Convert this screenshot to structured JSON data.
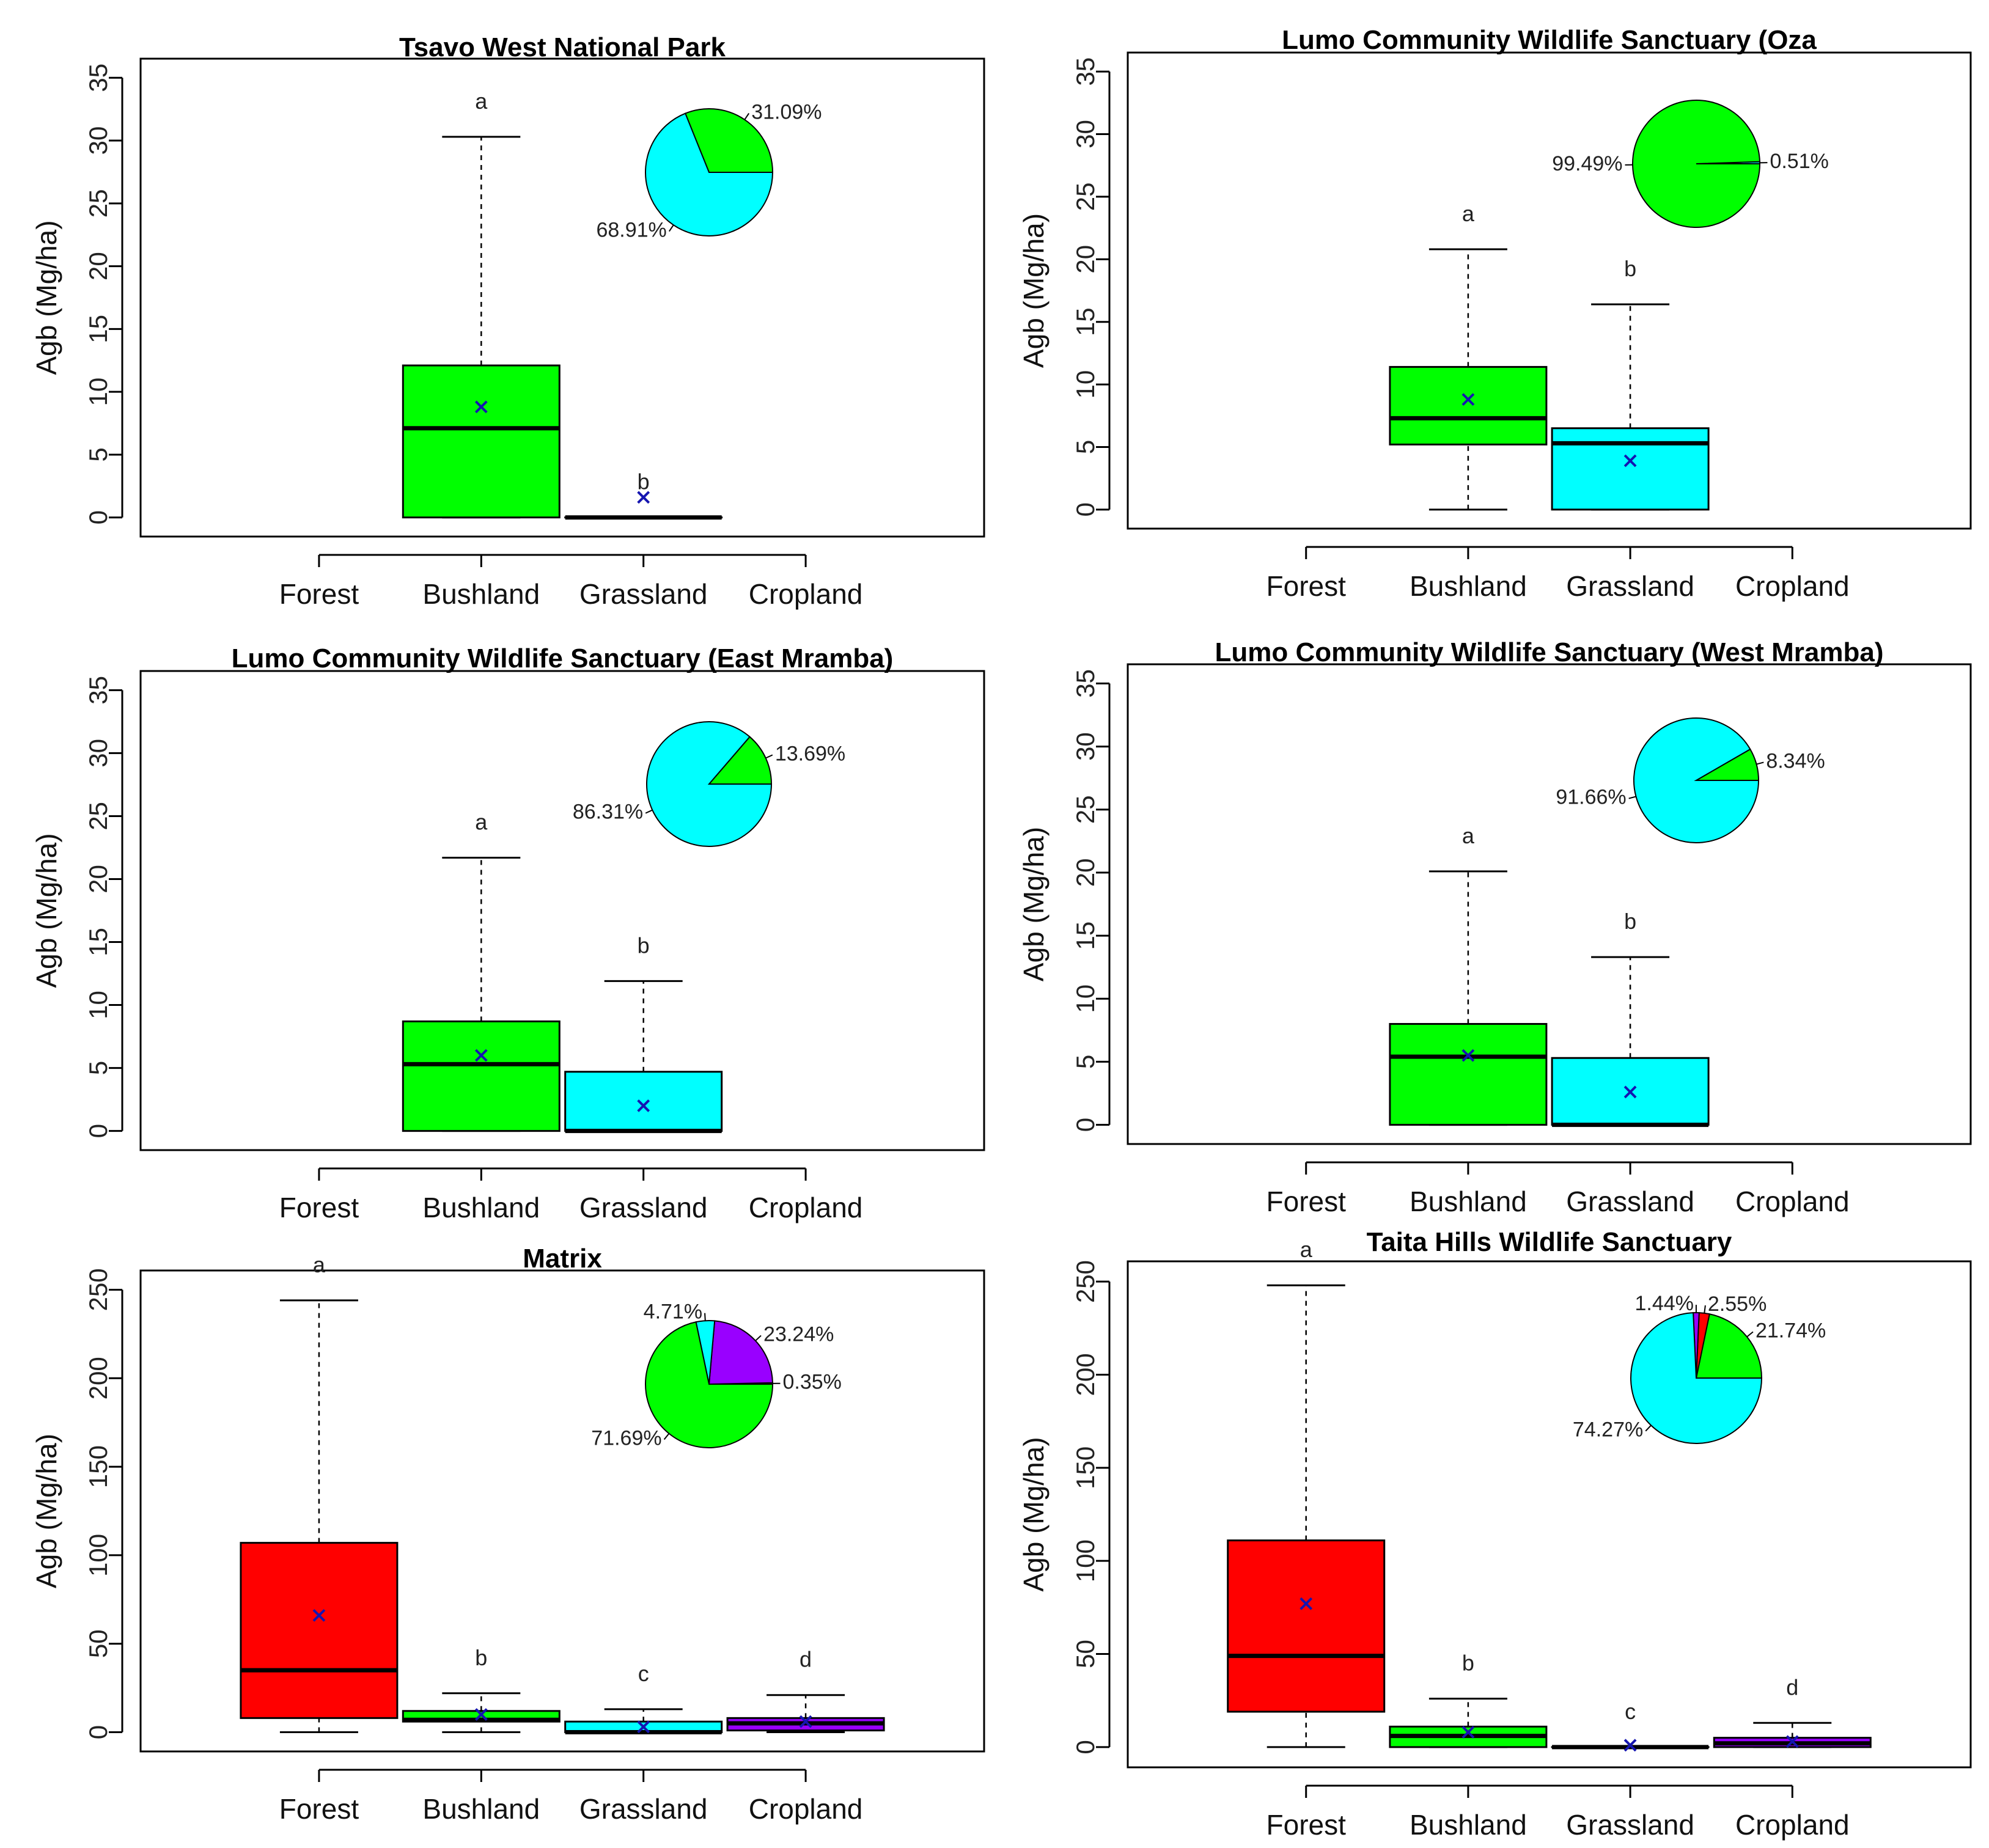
{
  "chart_data": [
    {
      "type": "box",
      "title": "Tsavo West National Park",
      "ylabel": "Agb (Mg/ha)",
      "ylim": [
        0,
        35
      ],
      "yticks": [
        "0",
        "5",
        "10",
        "15",
        "20",
        "25",
        "30",
        "35"
      ],
      "categories": [
        "Forest",
        "Bushland",
        "Grassland",
        "Cropland"
      ],
      "boxes": [
        null,
        {
          "category": "Bushland",
          "min": 0,
          "q1": 0,
          "median": 7.1,
          "q3": 12.1,
          "max": 30.3,
          "mean": 8.8,
          "letter": "a",
          "color": "#00ff00"
        },
        {
          "category": "Grassland",
          "min": 0,
          "q1": 0,
          "median": 0,
          "q3": 0,
          "max": 0,
          "mean": 1.6,
          "letter": "b",
          "color": "#00ffff"
        },
        null
      ],
      "pie": {
        "slices": [
          {
            "value": 31.09,
            "label": "31.09%",
            "color": "#00ff00"
          },
          {
            "value": 68.91,
            "label": "68.91%",
            "color": "#00ffff"
          }
        ]
      }
    },
    {
      "type": "box",
      "title": "Lumo Community Wildlife Sanctuary (Oza",
      "ylabel": "Agb (Mg/ha)",
      "ylim": [
        0,
        35
      ],
      "yticks": [
        "0",
        "5",
        "10",
        "15",
        "20",
        "25",
        "30",
        "35"
      ],
      "categories": [
        "Forest",
        "Bushland",
        "Grassland",
        "Cropland"
      ],
      "boxes": [
        null,
        {
          "category": "Bushland",
          "min": 0,
          "q1": 5.2,
          "median": 7.3,
          "q3": 11.4,
          "max": 20.8,
          "mean": 8.8,
          "letter": "a",
          "color": "#00ff00"
        },
        {
          "category": "Grassland",
          "min": 0,
          "q1": 0,
          "median": 5.3,
          "q3": 6.5,
          "max": 16.4,
          "mean": 3.9,
          "letter": "b",
          "color": "#00ffff"
        },
        null
      ],
      "pie": {
        "slices": [
          {
            "value": 0.51,
            "label": "0.51%",
            "color": "#00ffff"
          },
          {
            "value": 99.49,
            "label": "99.49%",
            "color": "#00ff00"
          }
        ]
      }
    },
    {
      "type": "box",
      "title": "Lumo Community Wildlife Sanctuary (East Mramba)",
      "ylabel": "Agb (Mg/ha)",
      "ylim": [
        0,
        35
      ],
      "yticks": [
        "0",
        "5",
        "10",
        "15",
        "20",
        "25",
        "30",
        "35"
      ],
      "categories": [
        "Forest",
        "Bushland",
        "Grassland",
        "Cropland"
      ],
      "boxes": [
        null,
        {
          "category": "Bushland",
          "min": 0,
          "q1": 0,
          "median": 5.3,
          "q3": 8.7,
          "max": 21.7,
          "mean": 6.0,
          "letter": "a",
          "color": "#00ff00"
        },
        {
          "category": "Grassland",
          "min": 0,
          "q1": 0,
          "median": 0,
          "q3": 4.7,
          "max": 11.9,
          "mean": 2.0,
          "letter": "b",
          "color": "#00ffff"
        },
        null
      ],
      "pie": {
        "slices": [
          {
            "value": 13.69,
            "label": "13.69%",
            "color": "#00ff00"
          },
          {
            "value": 86.31,
            "label": "86.31%",
            "color": "#00ffff"
          }
        ]
      }
    },
    {
      "type": "box",
      "title": "Lumo Community Wildlife Sanctuary (West Mramba)",
      "ylabel": "Agb (Mg/ha)",
      "ylim": [
        0,
        35
      ],
      "yticks": [
        "0",
        "5",
        "10",
        "15",
        "20",
        "25",
        "30",
        "35"
      ],
      "categories": [
        "Forest",
        "Bushland",
        "Grassland",
        "Cropland"
      ],
      "boxes": [
        null,
        {
          "category": "Bushland",
          "min": 0,
          "q1": 0,
          "median": 5.4,
          "q3": 8.0,
          "max": 20.1,
          "mean": 5.5,
          "letter": "a",
          "color": "#00ff00"
        },
        {
          "category": "Grassland",
          "min": 0,
          "q1": 0,
          "median": 0,
          "q3": 5.3,
          "max": 13.3,
          "mean": 2.6,
          "letter": "b",
          "color": "#00ffff"
        },
        null
      ],
      "pie": {
        "slices": [
          {
            "value": 8.34,
            "label": "8.34%",
            "color": "#00ff00"
          },
          {
            "value": 91.66,
            "label": "91.66%",
            "color": "#00ffff"
          }
        ]
      }
    },
    {
      "type": "box",
      "title": "Matrix",
      "ylabel": "Agb (Mg/ha)",
      "ylim": [
        0,
        250
      ],
      "yticks": [
        "0",
        "50",
        "100",
        "150",
        "200",
        "250"
      ],
      "categories": [
        "Forest",
        "Bushland",
        "Grassland",
        "Cropland"
      ],
      "boxes": [
        {
          "category": "Forest",
          "min": 0,
          "q1": 8,
          "median": 35,
          "q3": 107,
          "max": 244,
          "mean": 66,
          "letter": "a",
          "color": "#ff0000"
        },
        {
          "category": "Bushland",
          "min": 0,
          "q1": 6,
          "median": 7,
          "q3": 12,
          "max": 22,
          "mean": 10,
          "letter": "b",
          "color": "#00ff00"
        },
        {
          "category": "Grassland",
          "min": 0,
          "q1": 0,
          "median": 0,
          "q3": 6,
          "max": 13,
          "mean": 3,
          "letter": "c",
          "color": "#00ffff"
        },
        {
          "category": "Cropland",
          "min": 0,
          "q1": 1,
          "median": 5,
          "q3": 8,
          "max": 21,
          "mean": 6,
          "letter": "d",
          "color": "#9900ff"
        }
      ],
      "pie": {
        "slices": [
          {
            "value": 0.35,
            "label": "0.35%",
            "color": "#ff0000"
          },
          {
            "value": 23.24,
            "label": "23.24%",
            "color": "#9900ff"
          },
          {
            "value": 4.71,
            "label": "4.71%",
            "color": "#00ffff"
          },
          {
            "value": 71.69,
            "label": "71.69%",
            "color": "#00ff00"
          }
        ]
      }
    },
    {
      "type": "box",
      "title": "Taita Hills Wildlife Sanctuary",
      "ylabel": "Agb (Mg/ha)",
      "ylim": [
        0,
        250
      ],
      "yticks": [
        "0",
        "50",
        "100",
        "150",
        "200",
        "250"
      ],
      "categories": [
        "Forest",
        "Bushland",
        "Grassland",
        "Cropland"
      ],
      "boxes": [
        {
          "category": "Forest",
          "min": 0,
          "q1": 19,
          "median": 49,
          "q3": 111,
          "max": 248,
          "mean": 77,
          "letter": "a",
          "color": "#ff0000"
        },
        {
          "category": "Bushland",
          "min": 0,
          "q1": 0,
          "median": 6,
          "q3": 11,
          "max": 26,
          "mean": 8,
          "letter": "b",
          "color": "#00ff00"
        },
        {
          "category": "Grassland",
          "min": 0,
          "q1": 0,
          "median": 0,
          "q3": 0,
          "max": 0,
          "mean": 1,
          "letter": "c",
          "color": "#00ffff"
        },
        {
          "category": "Cropland",
          "min": 0,
          "q1": 0,
          "median": 2,
          "q3": 5,
          "max": 13,
          "mean": 3,
          "letter": "d",
          "color": "#9900ff"
        }
      ],
      "pie": {
        "slices": [
          {
            "value": 21.74,
            "label": "21.74%",
            "color": "#00ff00"
          },
          {
            "value": 2.55,
            "label": "2.55%",
            "color": "#ff0000"
          },
          {
            "value": 1.44,
            "label": "1.44%",
            "color": "#9900ff"
          },
          {
            "value": 74.27,
            "label": "74.27%",
            "color": "#00ffff"
          }
        ]
      }
    }
  ]
}
